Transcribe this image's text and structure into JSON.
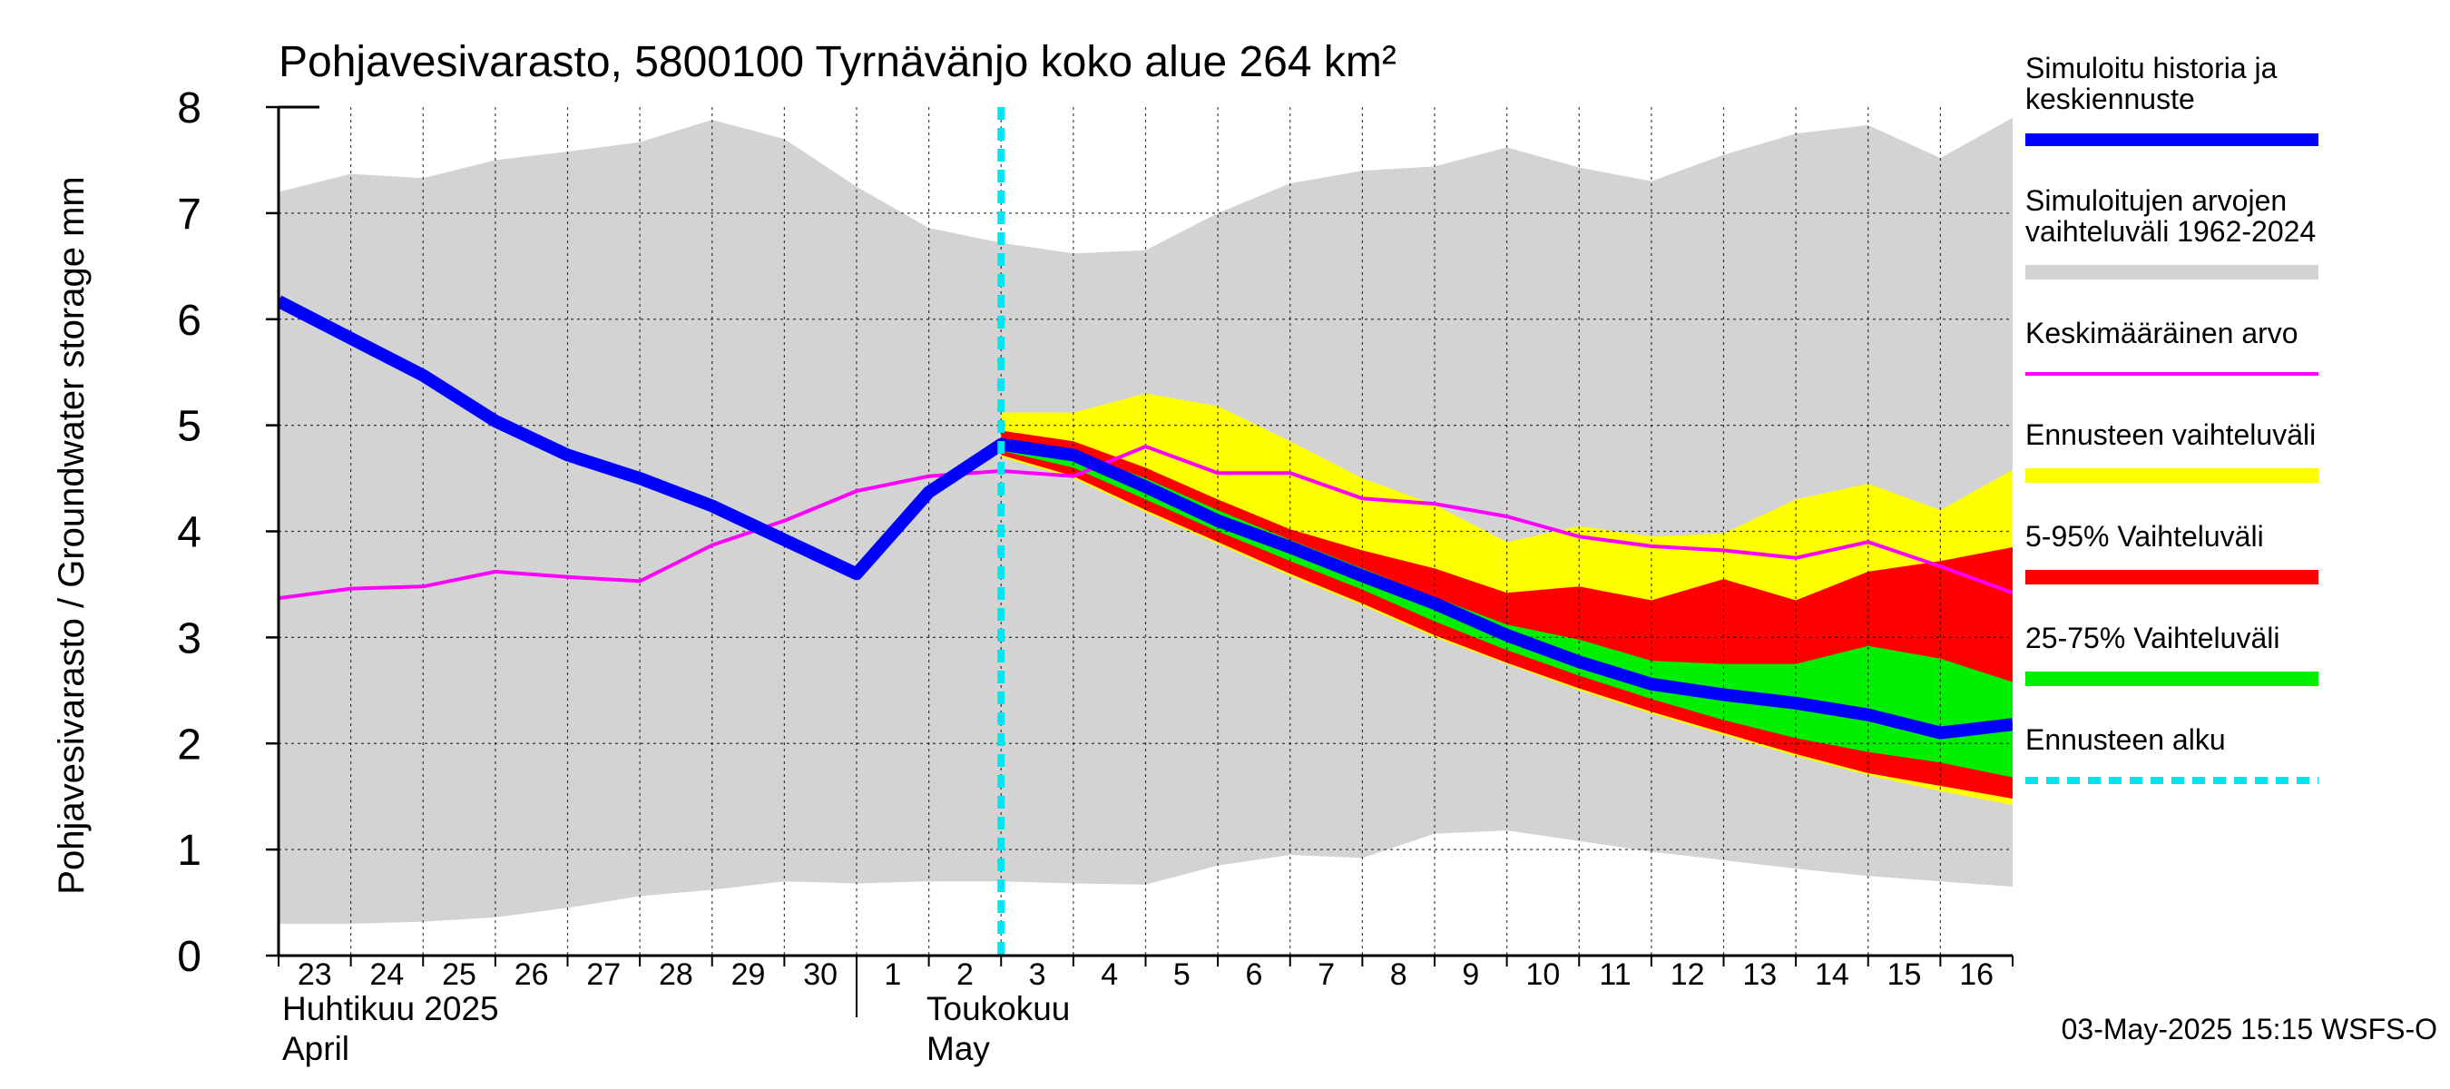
{
  "chart_data": {
    "type": "area",
    "title": "Pohjavesivarasto, 5800100 Tyrnävänjo koko alue 264 km²",
    "ylabel": "Pohjavesivarasto / Groundwater storage   mm",
    "ylim": [
      0,
      8
    ],
    "yticks": [
      "0",
      "1",
      "2",
      "3",
      "4",
      "5",
      "6",
      "7",
      "8"
    ],
    "xlim": [
      0,
      24
    ],
    "days": [
      "23",
      "24",
      "25",
      "26",
      "27",
      "28",
      "29",
      "30",
      "1",
      "2",
      "3",
      "4",
      "5",
      "6",
      "7",
      "8",
      "9",
      "10",
      "11",
      "12",
      "13",
      "14",
      "15",
      "16"
    ],
    "month_labels": {
      "april_fi": "Huhtikuu  2025",
      "april_en": "April",
      "may_fi": "Toukokuu",
      "may_en": "May"
    },
    "forecast_start_x": 10,
    "timestamp": "03-May-2025 15:15 WSFS-O",
    "colors": {
      "history_band": "#d3d3d3",
      "simulated": "#0000ff",
      "mean": "#ff00ff",
      "forecast_range": "#ffff00",
      "p5_95": "#ff0000",
      "p25_75": "#00ee00",
      "forecast_start": "#00e5ee"
    },
    "legend": [
      {
        "key": "simulated",
        "label": "Simuloitu historia ja keskiennuste",
        "style": "thick"
      },
      {
        "key": "history_band",
        "label": "Simuloitujen arvojen vaihteluväli 1962-2024",
        "style": "band"
      },
      {
        "key": "mean",
        "label": "Keskimääräinen arvo",
        "style": "thin"
      },
      {
        "key": "forecast_range",
        "label": "Ennusteen vaihteluväli",
        "style": "band"
      },
      {
        "key": "p5_95",
        "label": "5-95% Vaihteluväli",
        "style": "band"
      },
      {
        "key": "p25_75",
        "label": "25-75% Vaihteluväli",
        "style": "band"
      },
      {
        "key": "forecast_start",
        "label": "Ennusteen alku",
        "style": "dashed"
      }
    ],
    "series": {
      "history_max": {
        "x": [
          0,
          1,
          2,
          3,
          4,
          5,
          6,
          7,
          8,
          9,
          10,
          11,
          12,
          13,
          14,
          15,
          16,
          17,
          18,
          19,
          20,
          21,
          22,
          23,
          24
        ],
        "y": [
          7.2,
          7.37,
          7.33,
          7.5,
          7.58,
          7.67,
          7.88,
          7.7,
          7.25,
          6.86,
          6.72,
          6.62,
          6.65,
          7.0,
          7.28,
          7.4,
          7.44,
          7.62,
          7.43,
          7.3,
          7.55,
          7.75,
          7.83,
          7.52,
          7.9
        ]
      },
      "history_min": {
        "x": [
          0,
          1,
          2,
          3,
          4,
          5,
          6,
          7,
          8,
          9,
          10,
          11,
          12,
          13,
          14,
          15,
          16,
          17,
          18,
          19,
          20,
          21,
          22,
          23,
          24
        ],
        "y": [
          0.3,
          0.3,
          0.32,
          0.36,
          0.45,
          0.56,
          0.62,
          0.7,
          0.68,
          0.7,
          0.7,
          0.68,
          0.67,
          0.85,
          0.95,
          0.92,
          1.15,
          1.18,
          1.08,
          0.98,
          0.9,
          0.82,
          0.75,
          0.7,
          0.65
        ]
      },
      "forecast_max": {
        "x": [
          10,
          11,
          12,
          13,
          14,
          15,
          16,
          17,
          18,
          19,
          20,
          21,
          22,
          23,
          24
        ],
        "y": [
          5.12,
          5.12,
          5.3,
          5.18,
          4.85,
          4.5,
          4.25,
          3.9,
          4.05,
          3.95,
          3.98,
          4.3,
          4.45,
          4.2,
          4.58
        ]
      },
      "forecast_min": {
        "x": [
          10,
          11,
          12,
          13,
          14,
          15,
          16,
          17,
          18,
          19,
          20,
          21,
          22,
          23,
          24
        ],
        "y": [
          4.7,
          4.5,
          4.18,
          3.88,
          3.58,
          3.3,
          3.0,
          2.75,
          2.5,
          2.28,
          2.08,
          1.88,
          1.7,
          1.55,
          1.42
        ]
      },
      "p95": {
        "x": [
          10,
          11,
          12,
          13,
          14,
          15,
          16,
          17,
          18,
          19,
          20,
          21,
          22,
          23,
          24
        ],
        "y": [
          4.95,
          4.85,
          4.6,
          4.3,
          4.02,
          3.82,
          3.65,
          3.42,
          3.48,
          3.35,
          3.55,
          3.35,
          3.62,
          3.72,
          3.85
        ]
      },
      "p5": {
        "x": [
          10,
          11,
          12,
          13,
          14,
          15,
          16,
          17,
          18,
          19,
          20,
          21,
          22,
          23,
          24
        ],
        "y": [
          4.72,
          4.52,
          4.2,
          3.9,
          3.6,
          3.32,
          3.02,
          2.76,
          2.52,
          2.3,
          2.1,
          1.9,
          1.72,
          1.6,
          1.48
        ]
      },
      "p75": {
        "x": [
          10,
          11,
          12,
          13,
          14,
          15,
          16,
          17,
          18,
          19,
          20,
          21,
          22,
          23,
          24
        ],
        "y": [
          4.87,
          4.75,
          4.5,
          4.2,
          3.92,
          3.65,
          3.38,
          3.12,
          2.98,
          2.78,
          2.75,
          2.75,
          2.92,
          2.8,
          2.58
        ]
      },
      "p25": {
        "x": [
          10,
          11,
          12,
          13,
          14,
          15,
          16,
          17,
          18,
          19,
          20,
          21,
          22,
          23,
          24
        ],
        "y": [
          4.76,
          4.6,
          4.3,
          4.0,
          3.72,
          3.45,
          3.15,
          2.88,
          2.64,
          2.42,
          2.22,
          2.05,
          1.92,
          1.82,
          1.68
        ]
      },
      "simulated": {
        "x": [
          0,
          1,
          2,
          3,
          4,
          5,
          6,
          7,
          8,
          9,
          10,
          11,
          12,
          13,
          14,
          15,
          16,
          17,
          18,
          19,
          20,
          21,
          22,
          23,
          24
        ],
        "y": [
          6.17,
          5.82,
          5.47,
          5.04,
          4.72,
          4.5,
          4.24,
          3.92,
          3.6,
          4.37,
          4.82,
          4.72,
          4.42,
          4.1,
          3.85,
          3.58,
          3.32,
          3.02,
          2.77,
          2.56,
          2.46,
          2.38,
          2.27,
          2.1,
          2.18
        ]
      },
      "mean": {
        "x": [
          0,
          1,
          2,
          3,
          4,
          5,
          6,
          7,
          8,
          9,
          10,
          11,
          12,
          13,
          14,
          15,
          16,
          17,
          18,
          19,
          20,
          21,
          22,
          23,
          24
        ],
        "y": [
          3.37,
          3.46,
          3.48,
          3.62,
          3.57,
          3.53,
          3.87,
          4.1,
          4.38,
          4.52,
          4.57,
          4.52,
          4.8,
          4.55,
          4.55,
          4.31,
          4.26,
          4.14,
          3.95,
          3.86,
          3.82,
          3.75,
          3.9,
          3.67,
          3.42
        ]
      }
    }
  }
}
